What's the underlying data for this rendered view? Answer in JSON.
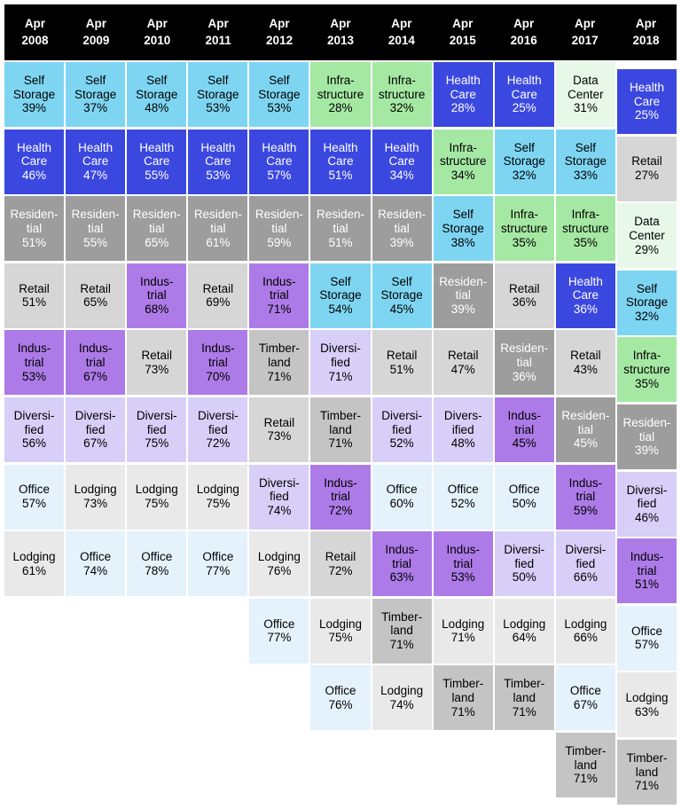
{
  "sector_colors": {
    "Self Storage": {
      "bg": "#7ED5F2",
      "fg": "#000000"
    },
    "Health Care": {
      "bg": "#3B48E0",
      "fg": "#FFFFFF"
    },
    "Infrastructure": {
      "bg": "#A5E8A3",
      "fg": "#000000"
    },
    "Data Center": {
      "bg": "#E7F8E9",
      "fg": "#000000"
    },
    "Residential": {
      "bg": "#9D9D9D",
      "fg": "#FFFFFF"
    },
    "Retail": {
      "bg": "#D6D6D6",
      "fg": "#000000"
    },
    "Industrial": {
      "bg": "#AD7BE8",
      "fg": "#000000"
    },
    "Diversified": {
      "bg": "#D7CFF7",
      "fg": "#000000"
    },
    "Timberland": {
      "bg": "#C4C4C4",
      "fg": "#000000"
    },
    "Office": {
      "bg": "#E3F2FB",
      "fg": "#000000"
    },
    "Lodging": {
      "bg": "#E9E9E9",
      "fg": "#000000"
    }
  },
  "chart_data": {
    "type": "heatmap",
    "title": "",
    "legend_position": "none",
    "value_unit": "%",
    "columns": [
      {
        "year": "Apr 2008",
        "year_display": "Apr\n2008",
        "cells": [
          {
            "sector": "Self Storage",
            "value": 39,
            "display": "Self\nStorage\n39%"
          },
          {
            "sector": "Health Care",
            "value": 46,
            "display": "Health\nCare\n46%"
          },
          {
            "sector": "Residential",
            "value": 51,
            "display": "Residen-\ntial\n51%"
          },
          {
            "sector": "Retail",
            "value": 51,
            "display": "Retail\n51%"
          },
          {
            "sector": "Industrial",
            "value": 53,
            "display": "Indus-\ntrial\n53%"
          },
          {
            "sector": "Diversified",
            "value": 56,
            "display": "Diversi-\nfied\n56%"
          },
          {
            "sector": "Office",
            "value": 57,
            "display": "Office\n57%"
          },
          {
            "sector": "Lodging",
            "value": 61,
            "display": "Lodging\n61%"
          }
        ]
      },
      {
        "year": "Apr 2009",
        "year_display": "Apr\n2009",
        "cells": [
          {
            "sector": "Self Storage",
            "value": 37,
            "display": "Self\nStorage\n37%"
          },
          {
            "sector": "Health Care",
            "value": 47,
            "display": "Health\nCare\n47%"
          },
          {
            "sector": "Residential",
            "value": 55,
            "display": "Residen-\ntial\n55%"
          },
          {
            "sector": "Retail",
            "value": 65,
            "display": "Retail\n65%"
          },
          {
            "sector": "Industrial",
            "value": 67,
            "display": "Indus-\ntrial\n67%"
          },
          {
            "sector": "Diversified",
            "value": 67,
            "display": "Diversi-\nfied\n67%"
          },
          {
            "sector": "Lodging",
            "value": 73,
            "display": "Lodging\n73%"
          },
          {
            "sector": "Office",
            "value": 74,
            "display": "Office\n74%"
          }
        ]
      },
      {
        "year": "Apr 2010",
        "year_display": "Apr\n2010",
        "cells": [
          {
            "sector": "Self Storage",
            "value": 48,
            "display": "Self\nStorage\n48%"
          },
          {
            "sector": "Health Care",
            "value": 55,
            "display": "Health\nCare\n55%"
          },
          {
            "sector": "Residential",
            "value": 65,
            "display": "Residen-\ntial\n65%"
          },
          {
            "sector": "Industrial",
            "value": 68,
            "display": "Indus-\ntrial\n68%"
          },
          {
            "sector": "Retail",
            "value": 73,
            "display": "Retail\n73%"
          },
          {
            "sector": "Diversified",
            "value": 75,
            "display": "Diversi-\nfied\n75%"
          },
          {
            "sector": "Lodging",
            "value": 75,
            "display": "Lodging\n75%"
          },
          {
            "sector": "Office",
            "value": 78,
            "display": "Office\n78%"
          }
        ]
      },
      {
        "year": "Apr 2011",
        "year_display": "Apr\n2011",
        "cells": [
          {
            "sector": "Self Storage",
            "value": 53,
            "display": "Self\nStorage\n53%"
          },
          {
            "sector": "Health Care",
            "value": 53,
            "display": "Health\nCare\n53%"
          },
          {
            "sector": "Residential",
            "value": 61,
            "display": "Residen-\ntial\n61%"
          },
          {
            "sector": "Retail",
            "value": 69,
            "display": "Retail\n69%"
          },
          {
            "sector": "Industrial",
            "value": 70,
            "display": "Indus-\ntrial\n70%"
          },
          {
            "sector": "Diversified",
            "value": 72,
            "display": "Diversi-\nfied\n72%"
          },
          {
            "sector": "Lodging",
            "value": 75,
            "display": "Lodging\n75%"
          },
          {
            "sector": "Office",
            "value": 77,
            "display": "Office\n77%"
          }
        ]
      },
      {
        "year": "Apr 2012",
        "year_display": "Apr\n2012",
        "cells": [
          {
            "sector": "Self Storage",
            "value": 53,
            "display": "Self\nStorage\n53%"
          },
          {
            "sector": "Health Care",
            "value": 57,
            "display": "Health\nCare\n57%"
          },
          {
            "sector": "Residential",
            "value": 59,
            "display": "Residen-\ntial\n59%"
          },
          {
            "sector": "Industrial",
            "value": 71,
            "display": "Indus-\ntrial\n71%"
          },
          {
            "sector": "Timberland",
            "value": 71,
            "display": "Timber-\nland\n71%"
          },
          {
            "sector": "Retail",
            "value": 73,
            "display": "Retail\n73%"
          },
          {
            "sector": "Diversified",
            "value": 74,
            "display": "Diversi-\nfied\n74%"
          },
          {
            "sector": "Lodging",
            "value": 76,
            "display": "Lodging\n76%"
          },
          {
            "sector": "Office",
            "value": 77,
            "display": "Office\n77%"
          }
        ]
      },
      {
        "year": "Apr 2013",
        "year_display": "Apr\n2013",
        "cells": [
          {
            "sector": "Infrastructure",
            "value": 28,
            "display": "Infra-\nstructure\n28%"
          },
          {
            "sector": "Health Care",
            "value": 51,
            "display": "Health\nCare\n51%"
          },
          {
            "sector": "Residential",
            "value": 51,
            "display": "Residen-\ntial\n51%"
          },
          {
            "sector": "Self Storage",
            "value": 54,
            "display": "Self\nStorage\n54%"
          },
          {
            "sector": "Diversified",
            "value": 71,
            "display": "Diversi-\nfied\n71%"
          },
          {
            "sector": "Timberland",
            "value": 71,
            "display": "Timber-\nland\n71%"
          },
          {
            "sector": "Industrial",
            "value": 72,
            "display": "Indus-\ntrial\n72%"
          },
          {
            "sector": "Retail",
            "value": 72,
            "display": "Retail\n72%"
          },
          {
            "sector": "Lodging",
            "value": 75,
            "display": "Lodging\n75%"
          },
          {
            "sector": "Office",
            "value": 76,
            "display": "Office\n76%"
          }
        ]
      },
      {
        "year": "Apr 2014",
        "year_display": "Apr\n2014",
        "cells": [
          {
            "sector": "Infrastructure",
            "value": 32,
            "display": "Infra-\nstructure\n32%"
          },
          {
            "sector": "Health Care",
            "value": 34,
            "display": "Health\nCare\n34%"
          },
          {
            "sector": "Residential",
            "value": 39,
            "display": "Residen-\ntial\n39%"
          },
          {
            "sector": "Self Storage",
            "value": 45,
            "display": "Self\nStorage\n45%"
          },
          {
            "sector": "Retail",
            "value": 51,
            "display": "Retail\n51%"
          },
          {
            "sector": "Diversified",
            "value": 52,
            "display": "Diversi-\nfied\n52%"
          },
          {
            "sector": "Office",
            "value": 60,
            "display": "Office\n60%"
          },
          {
            "sector": "Industrial",
            "value": 63,
            "display": "Indus-\ntrial\n63%"
          },
          {
            "sector": "Timberland",
            "value": 71,
            "display": "Timber-\nland\n71%"
          },
          {
            "sector": "Lodging",
            "value": 74,
            "display": "Lodging\n74%"
          }
        ]
      },
      {
        "year": "Apr 2015",
        "year_display": "Apr\n2015",
        "cells": [
          {
            "sector": "Health Care",
            "value": 28,
            "display": "Health\nCare\n28%"
          },
          {
            "sector": "Infrastructure",
            "value": 34,
            "display": "Infra-\nstructure\n34%"
          },
          {
            "sector": "Self Storage",
            "value": 38,
            "display": "Self\nStorage\n38%"
          },
          {
            "sector": "Residential",
            "value": 39,
            "display": "Residen-\ntial\n39%"
          },
          {
            "sector": "Retail",
            "value": 47,
            "display": "Retail\n47%"
          },
          {
            "sector": "Diversified",
            "value": 48,
            "display": "Divers-\nified\n48%"
          },
          {
            "sector": "Office",
            "value": 52,
            "display": "Office\n52%"
          },
          {
            "sector": "Industrial",
            "value": 53,
            "display": "Indus-\ntrial\n53%"
          },
          {
            "sector": "Lodging",
            "value": 71,
            "display": "Lodging\n71%"
          },
          {
            "sector": "Timberland",
            "value": 71,
            "display": "Timber-\nland\n71%"
          }
        ]
      },
      {
        "year": "Apr 2016",
        "year_display": "Apr\n2016",
        "cells": [
          {
            "sector": "Health Care",
            "value": 25,
            "display": "Health\nCare\n25%"
          },
          {
            "sector": "Self Storage",
            "value": 32,
            "display": "Self\nStorage\n32%"
          },
          {
            "sector": "Infrastructure",
            "value": 35,
            "display": "Infra-\nstructure\n35%"
          },
          {
            "sector": "Retail",
            "value": 36,
            "display": "Retail\n36%"
          },
          {
            "sector": "Residential",
            "value": 36,
            "display": "Residen-\ntial\n36%"
          },
          {
            "sector": "Industrial",
            "value": 45,
            "display": "Indus-\ntrial\n45%"
          },
          {
            "sector": "Office",
            "value": 50,
            "display": "Office\n50%"
          },
          {
            "sector": "Diversified",
            "value": 50,
            "display": "Diversi-\nfied\n50%"
          },
          {
            "sector": "Lodging",
            "value": 64,
            "display": "Lodging\n64%"
          },
          {
            "sector": "Timberland",
            "value": 71,
            "display": "Timber-\nland\n71%"
          }
        ]
      },
      {
        "year": "Apr 2017",
        "year_display": "Apr\n2017",
        "cells": [
          {
            "sector": "Data Center",
            "value": 31,
            "display": "Data\nCenter\n31%"
          },
          {
            "sector": "Self Storage",
            "value": 33,
            "display": "Self\nStorage\n33%"
          },
          {
            "sector": "Infrastructure",
            "value": 35,
            "display": "Infra-\nstructure\n35%"
          },
          {
            "sector": "Health Care",
            "value": 36,
            "display": "Health\nCare\n36%"
          },
          {
            "sector": "Retail",
            "value": 43,
            "display": "Retail\n43%"
          },
          {
            "sector": "Residential",
            "value": 45,
            "display": "Residen-\ntial\n45%"
          },
          {
            "sector": "Industrial",
            "value": 59,
            "display": "Indus-\ntrial\n59%"
          },
          {
            "sector": "Diversified",
            "value": 66,
            "display": "Diversi-\nfied\n66%"
          },
          {
            "sector": "Lodging",
            "value": 66,
            "display": "Lodging\n66%"
          },
          {
            "sector": "Office",
            "value": 67,
            "display": "Office\n67%"
          },
          {
            "sector": "Timberland",
            "value": 71,
            "display": "Timber-\nland\n71%"
          }
        ]
      },
      {
        "year": "Apr 2018",
        "year_display": "Apr\n2018",
        "cells": [
          {
            "sector": "Health Care",
            "value": 25,
            "display": "Health\nCare\n25%"
          },
          {
            "sector": "Retail",
            "value": 27,
            "display": "Retail\n27%"
          },
          {
            "sector": "Data Center",
            "value": 29,
            "display": "Data\nCenter\n29%"
          },
          {
            "sector": "Self Storage",
            "value": 32,
            "display": "Self\nStorage\n32%"
          },
          {
            "sector": "Infrastructure",
            "value": 35,
            "display": "Infra-\nstructure\n35%"
          },
          {
            "sector": "Residential",
            "value": 39,
            "display": "Residen-\ntial\n39%"
          },
          {
            "sector": "Diversified",
            "value": 46,
            "display": "Diversi-\nfied\n46%"
          },
          {
            "sector": "Industrial",
            "value": 51,
            "display": "Indus-\ntrial\n51%"
          },
          {
            "sector": "Office",
            "value": 57,
            "display": "Office\n57%"
          },
          {
            "sector": "Lodging",
            "value": 63,
            "display": "Lodging\n63%"
          },
          {
            "sector": "Timberland",
            "value": 71,
            "display": "Timber-\nland\n71%"
          }
        ]
      }
    ]
  }
}
